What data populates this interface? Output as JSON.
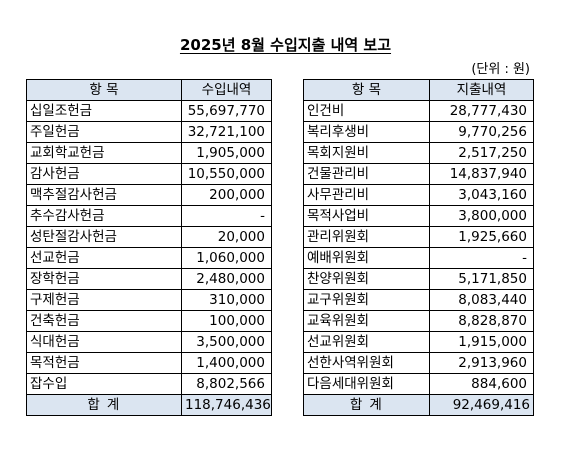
{
  "title": "2025년 8월 수입지출 내역 보고",
  "unit": "(단위 : 원)",
  "colors": {
    "header_bg": "#dbe5f1",
    "border": "#000000"
  },
  "income": {
    "header_item": "항 목",
    "header_amount": "수입내역",
    "rows": [
      {
        "item": "십일조헌금",
        "amount": "55,697,770"
      },
      {
        "item": "주일헌금",
        "amount": "32,721,100"
      },
      {
        "item": "교회학교헌금",
        "amount": "1,905,000"
      },
      {
        "item": "감사헌금",
        "amount": "10,550,000"
      },
      {
        "item": "맥추절감사헌금",
        "amount": "200,000"
      },
      {
        "item": "추수감사헌금",
        "amount": "-"
      },
      {
        "item": "성탄절감사헌금",
        "amount": "20,000"
      },
      {
        "item": "선교헌금",
        "amount": "1,060,000"
      },
      {
        "item": "장학헌금",
        "amount": "2,480,000"
      },
      {
        "item": "구제헌금",
        "amount": "310,000"
      },
      {
        "item": "건축헌금",
        "amount": "100,000"
      },
      {
        "item": "식대헌금",
        "amount": "3,500,000"
      },
      {
        "item": "목적헌금",
        "amount": "1,400,000"
      },
      {
        "item": "잡수입",
        "amount": "8,802,566"
      }
    ],
    "total_label": "합 계",
    "total_amount": "118,746,436"
  },
  "expense": {
    "header_item": "항 목",
    "header_amount": "지출내역",
    "rows": [
      {
        "item": "인건비",
        "amount": "28,777,430"
      },
      {
        "item": "복리후생비",
        "amount": "9,770,256"
      },
      {
        "item": "목회지원비",
        "amount": "2,517,250"
      },
      {
        "item": "건물관리비",
        "amount": "14,837,940"
      },
      {
        "item": "사무관리비",
        "amount": "3,043,160"
      },
      {
        "item": "목적사업비",
        "amount": "3,800,000"
      },
      {
        "item": "관리위원회",
        "amount": "1,925,660"
      },
      {
        "item": "예배위원회",
        "amount": "-"
      },
      {
        "item": "찬양위원회",
        "amount": "5,171,850"
      },
      {
        "item": "교구위원회",
        "amount": "8,083,440"
      },
      {
        "item": "교육위원회",
        "amount": "8,828,870"
      },
      {
        "item": "선교위원회",
        "amount": "1,915,000"
      },
      {
        "item": "선한사역위원회",
        "amount": "2,913,960"
      },
      {
        "item": "다음세대위원회",
        "amount": "884,600"
      }
    ],
    "total_label": "합 계",
    "total_amount": "92,469,416"
  }
}
